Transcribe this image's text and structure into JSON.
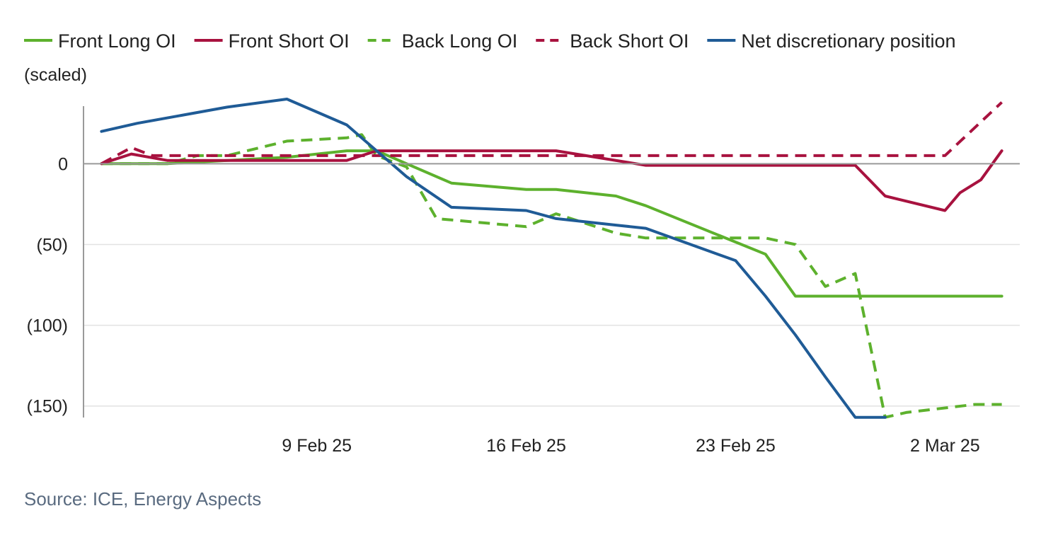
{
  "chart_data": {
    "type": "line",
    "unit_label": "(scaled)",
    "source": "Source: ICE, Energy Aspects",
    "ylim": [
      -158,
      40
    ],
    "y_ticks": [
      {
        "value": 0,
        "label": "0"
      },
      {
        "value": -50,
        "label": "(50)"
      },
      {
        "value": -100,
        "label": "(100)"
      },
      {
        "value": -150,
        "label": "(150)"
      }
    ],
    "x_ticks": [
      {
        "value": 9,
        "label": "9 Feb 25"
      },
      {
        "value": 16,
        "label": "16 Feb 25"
      },
      {
        "value": 23,
        "label": "23 Feb 25"
      },
      {
        "value": 30,
        "label": "2 Mar 25"
      }
    ],
    "xlim": [
      1.2,
      32.5
    ],
    "grid": true,
    "legend_position": "top",
    "series": [
      {
        "name": "Front Long OI",
        "color": "#5db12d",
        "dash": "solid",
        "x": [
          1.8,
          3,
          4,
          8,
          10,
          11,
          13.5,
          16,
          17,
          19,
          20,
          24,
          25,
          26,
          31.9
        ],
        "y": [
          0,
          0,
          0,
          4,
          8,
          8,
          -12,
          -16,
          -16,
          -20,
          -26,
          -56,
          -82,
          -82,
          -82
        ]
      },
      {
        "name": "Front Short OI",
        "color": "#a8123f",
        "dash": "solid",
        "x": [
          1.8,
          2.8,
          4,
          7.5,
          10,
          11,
          15,
          17,
          20,
          23,
          26,
          27,
          28,
          30,
          30.5,
          31.2,
          31.9
        ],
        "y": [
          0,
          6,
          2,
          2,
          2,
          8,
          8,
          8,
          -1,
          -1,
          -1,
          -1,
          -20,
          -29,
          -18,
          -10,
          8
        ]
      },
      {
        "name": "Back Long OI",
        "color": "#5db12d",
        "dash": "dashed",
        "x": [
          1.8,
          3,
          4,
          5,
          6,
          8,
          10,
          10.5,
          11,
          12,
          13,
          16,
          17,
          19,
          20,
          24,
          25,
          26,
          27,
          28,
          28.7,
          31,
          31.9
        ],
        "y": [
          0,
          0,
          0,
          5,
          5,
          14,
          16,
          18,
          5,
          -2,
          -34,
          -39,
          -31,
          -43,
          -46,
          -46,
          -50,
          -76,
          -68,
          -157,
          -154,
          -149,
          -149
        ]
      },
      {
        "name": "Back Short OI",
        "color": "#a8123f",
        "dash": "dashed",
        "x": [
          1.8,
          2.8,
          3.5,
          6,
          8,
          10,
          11,
          30,
          31.9
        ],
        "y": [
          0,
          10,
          5,
          5,
          5,
          5,
          5,
          5,
          38
        ]
      },
      {
        "name": "Net discretionary position",
        "color": "#1f5b96",
        "dash": "solid",
        "x": [
          1.8,
          3,
          6,
          8,
          10,
          11,
          12,
          13.5,
          16,
          17,
          19,
          20,
          23,
          24,
          25,
          26,
          27,
          28
        ],
        "y": [
          20,
          25,
          35,
          40,
          24,
          8,
          -8,
          -27,
          -29,
          -34,
          -38,
          -40,
          -60,
          -82,
          -106,
          -132,
          -157,
          -157
        ]
      }
    ]
  }
}
